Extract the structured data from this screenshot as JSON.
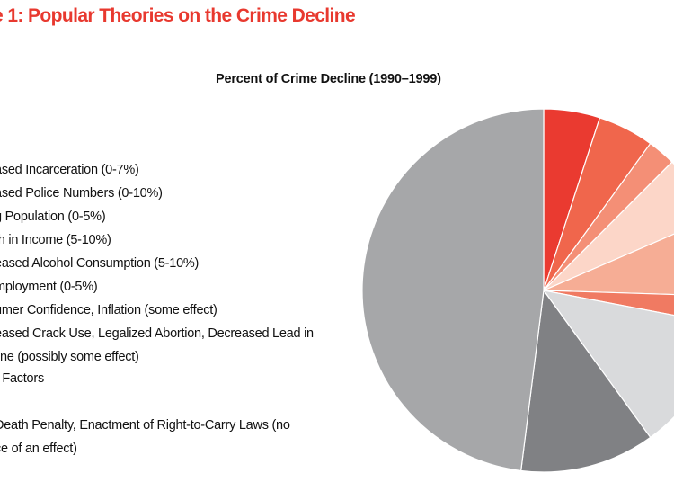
{
  "figure": {
    "title": "e 1: Popular Theories on the Crime Decline"
  },
  "chart_data": {
    "type": "pie",
    "title": "Percent of Crime Decline (1990–1999)",
    "categories": [
      "ased Incarceration (0-7%)",
      "ased Police Numbers (0-10%)",
      "g Population (0-5%)",
      "th in Income (5-10%)",
      "eased Alcohol Consumption (5-10%)",
      "mployment (0-5%)",
      "umer Confidence, Inflation (some effect)",
      "eased Crack Use, Legalized Abortion, Decreased Lead in line (possibly some effect)",
      "r Factors",
      "Death Penalty, Enactment of Right-to-Carry Laws (no ce of an effect)"
    ],
    "values": [
      5,
      5,
      2.5,
      6,
      7,
      2.5,
      12,
      12,
      48,
      0
    ],
    "colors": [
      "#ea3a30",
      "#f0664c",
      "#f48f76",
      "#fcd6c8",
      "#f6ad95",
      "#f07a62",
      "#d9dadc",
      "#808184",
      "#a6a7a9",
      "#ffffff"
    ],
    "legend_lines": [
      [
        "ased Incarceration (0-7%)"
      ],
      [
        "ased Police Numbers (0-10%)"
      ],
      [
        "g Population (0-5%)"
      ],
      [
        "th in Income (5-10%)"
      ],
      [
        "eased Alcohol Consumption (5-10%)"
      ],
      [
        "mployment (0-5%)"
      ],
      [
        "umer Confidence, Inflation (some effect)"
      ],
      [
        "eased Crack Use, Legalized Abortion, Decreased Lead in",
        "line (possibly some effect)"
      ],
      [
        "r Factors"
      ],
      [
        "Death Penalty, Enactment of Right-to-Carry Laws (no",
        "ce of an effect)"
      ]
    ],
    "start_angle_deg": 0,
    "direction": "clockwise",
    "legend_position": "left"
  }
}
